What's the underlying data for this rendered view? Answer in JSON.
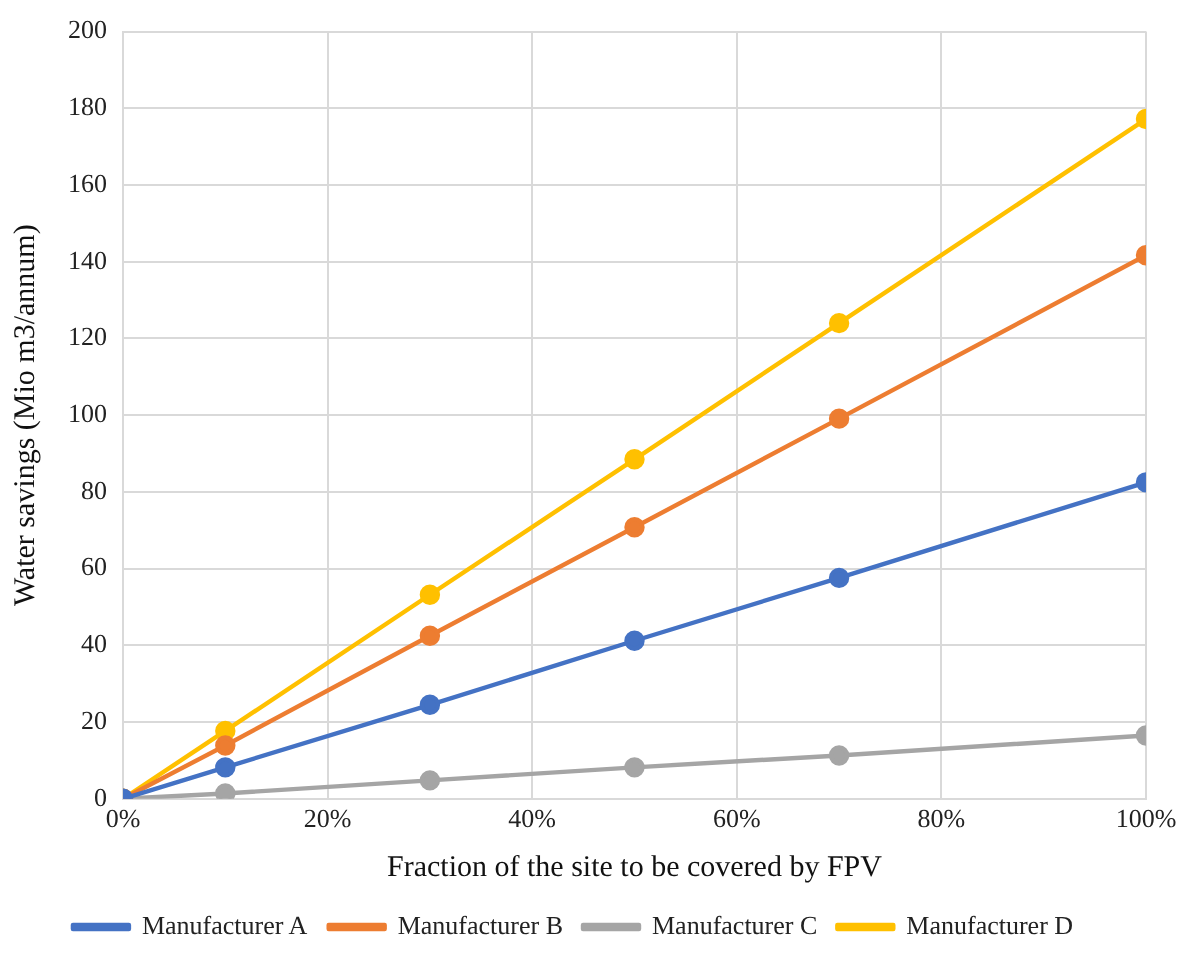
{
  "chart_data": {
    "type": "line",
    "xlabel": "Fraction of the site to be covered by FPV",
    "ylabel": "Water savings (Mio m3/annum)",
    "x": [
      0,
      10,
      30,
      50,
      70,
      100
    ],
    "series": [
      {
        "name": "Manufacturer A",
        "color": "#4472c4",
        "values": [
          0,
          8.2,
          24.5,
          41.2,
          57.6,
          82.5
        ]
      },
      {
        "name": "Manufacturer B",
        "color": "#ed7d31",
        "values": [
          0,
          13.9,
          42.5,
          70.8,
          99.1,
          141.7
        ]
      },
      {
        "name": "Manufacturer C",
        "color": "#a5a5a5",
        "values": [
          0,
          1.4,
          4.8,
          8.2,
          11.3,
          16.5
        ]
      },
      {
        "name": "Manufacturer D",
        "color": "#ffc000",
        "values": [
          0,
          17.7,
          53.2,
          88.5,
          124,
          177.2
        ]
      }
    ],
    "xlim": [
      0,
      100
    ],
    "xticks": [
      {
        "value": 0,
        "label": "0%"
      },
      {
        "value": 20,
        "label": "20%"
      },
      {
        "value": 40,
        "label": "40%"
      },
      {
        "value": 60,
        "label": "60%"
      },
      {
        "value": 80,
        "label": "80%"
      },
      {
        "value": 100,
        "label": "100%"
      }
    ],
    "ylim": [
      0,
      200
    ],
    "yticks": [
      0,
      20,
      40,
      60,
      80,
      100,
      120,
      140,
      160,
      180,
      200
    ],
    "grid": true,
    "legend": "bottom",
    "marker": "circle",
    "line_style": "solid"
  }
}
